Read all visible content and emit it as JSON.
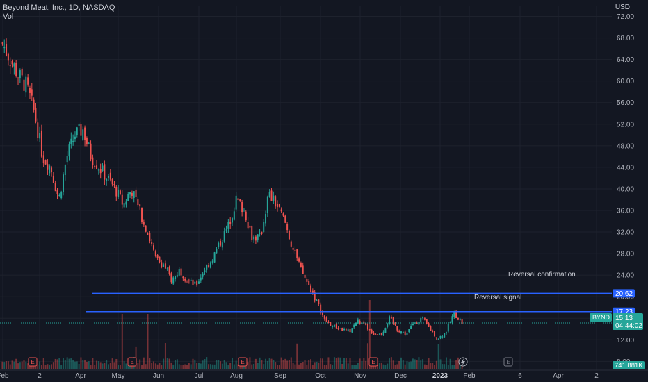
{
  "header": {
    "symbol_line": "Beyond Meat, Inc., 1D, NASDAQ",
    "volume_label": "Vol"
  },
  "price_axis": {
    "currency": "USD",
    "ticks": [
      "72.00",
      "68.00",
      "64.00",
      "60.00",
      "56.00",
      "52.00",
      "48.00",
      "44.00",
      "40.00",
      "36.00",
      "32.00",
      "28.00",
      "24.00",
      "20.00",
      "16.00",
      "12.00",
      "8.00"
    ]
  },
  "time_axis": {
    "labels": [
      "Feb",
      "2",
      "Apr",
      "May",
      "Jun",
      "Jul",
      "Aug",
      "Sep",
      "Oct",
      "Nov",
      "Dec",
      "2023",
      "Feb",
      "6",
      "Apr",
      "2"
    ]
  },
  "annotations": {
    "reversal_confirmation": "Reversal confirmation",
    "reversal_signal": "Reversal signal"
  },
  "levels": {
    "upper_value": "20.62",
    "lower_value": "17.23",
    "color": "#2962ff"
  },
  "last_price": {
    "symbol": "BYND",
    "price": "15.13",
    "countdown": "04:44:02",
    "color": "#26a69a"
  },
  "volume_readout": "741.881K",
  "event_markers": {
    "earnings_label": "E",
    "dividend_icon": "lightning-icon"
  },
  "colors": {
    "up": "#26a69a",
    "down": "#ef5350",
    "background": "#131722",
    "grid": "#1e222d"
  },
  "chart_data": {
    "type": "candlestick",
    "y_range": [
      6.5,
      74.0
    ],
    "support_levels": [
      20.62,
      17.23
    ],
    "close_path": [
      {
        "x": "Feb",
        "y": 67
      },
      {
        "x": "Feb",
        "y": 64
      },
      {
        "x": "Feb",
        "y": 61
      },
      {
        "x": "Feb",
        "y": 59
      },
      {
        "x": "2",
        "y": 54
      },
      {
        "x": "2",
        "y": 46
      },
      {
        "x": "2",
        "y": 44
      },
      {
        "x": "2",
        "y": 38
      },
      {
        "x": "Apr",
        "y": 46
      },
      {
        "x": "Apr",
        "y": 50
      },
      {
        "x": "Apr",
        "y": 51
      },
      {
        "x": "Apr",
        "y": 46
      },
      {
        "x": "Apr",
        "y": 44
      },
      {
        "x": "Apr",
        "y": 42
      },
      {
        "x": "May",
        "y": 40
      },
      {
        "x": "May",
        "y": 37
      },
      {
        "x": "May",
        "y": 40
      },
      {
        "x": "May",
        "y": 36
      },
      {
        "x": "May",
        "y": 32
      },
      {
        "x": "May",
        "y": 27
      },
      {
        "x": "Jun",
        "y": 26
      },
      {
        "x": "Jun",
        "y": 23
      },
      {
        "x": "Jun",
        "y": 25
      },
      {
        "x": "Jun",
        "y": 23
      },
      {
        "x": "Jun",
        "y": 22
      },
      {
        "x": "Jul",
        "y": 25
      },
      {
        "x": "Jul",
        "y": 27
      },
      {
        "x": "Jul",
        "y": 30
      },
      {
        "x": "Jul",
        "y": 33
      },
      {
        "x": "Jul",
        "y": 38
      },
      {
        "x": "Aug",
        "y": 36
      },
      {
        "x": "Aug",
        "y": 31
      },
      {
        "x": "Aug",
        "y": 31
      },
      {
        "x": "Aug",
        "y": 39
      },
      {
        "x": "Aug",
        "y": 37
      },
      {
        "x": "Aug",
        "y": 34
      },
      {
        "x": "Sep",
        "y": 29
      },
      {
        "x": "Sep",
        "y": 25
      },
      {
        "x": "Sep",
        "y": 22
      },
      {
        "x": "Sep",
        "y": 19
      },
      {
        "x": "Oct",
        "y": 15.5
      },
      {
        "x": "Oct",
        "y": 14.5
      },
      {
        "x": "Oct",
        "y": 14
      },
      {
        "x": "Oct",
        "y": 13.5
      },
      {
        "x": "Nov",
        "y": 15.5
      },
      {
        "x": "Nov",
        "y": 14.5
      },
      {
        "x": "Nov",
        "y": 13.2
      },
      {
        "x": "Nov",
        "y": 13
      },
      {
        "x": "Dec",
        "y": 16
      },
      {
        "x": "Dec",
        "y": 14
      },
      {
        "x": "Dec",
        "y": 13
      },
      {
        "x": "Dec",
        "y": 15
      },
      {
        "x": "Dec",
        "y": 16
      },
      {
        "x": "Dec",
        "y": 14
      },
      {
        "x": "2023",
        "y": 12.2
      },
      {
        "x": "2023",
        "y": 13.5
      },
      {
        "x": "2023",
        "y": 17
      },
      {
        "x": "2023",
        "y": 15.13
      }
    ]
  }
}
